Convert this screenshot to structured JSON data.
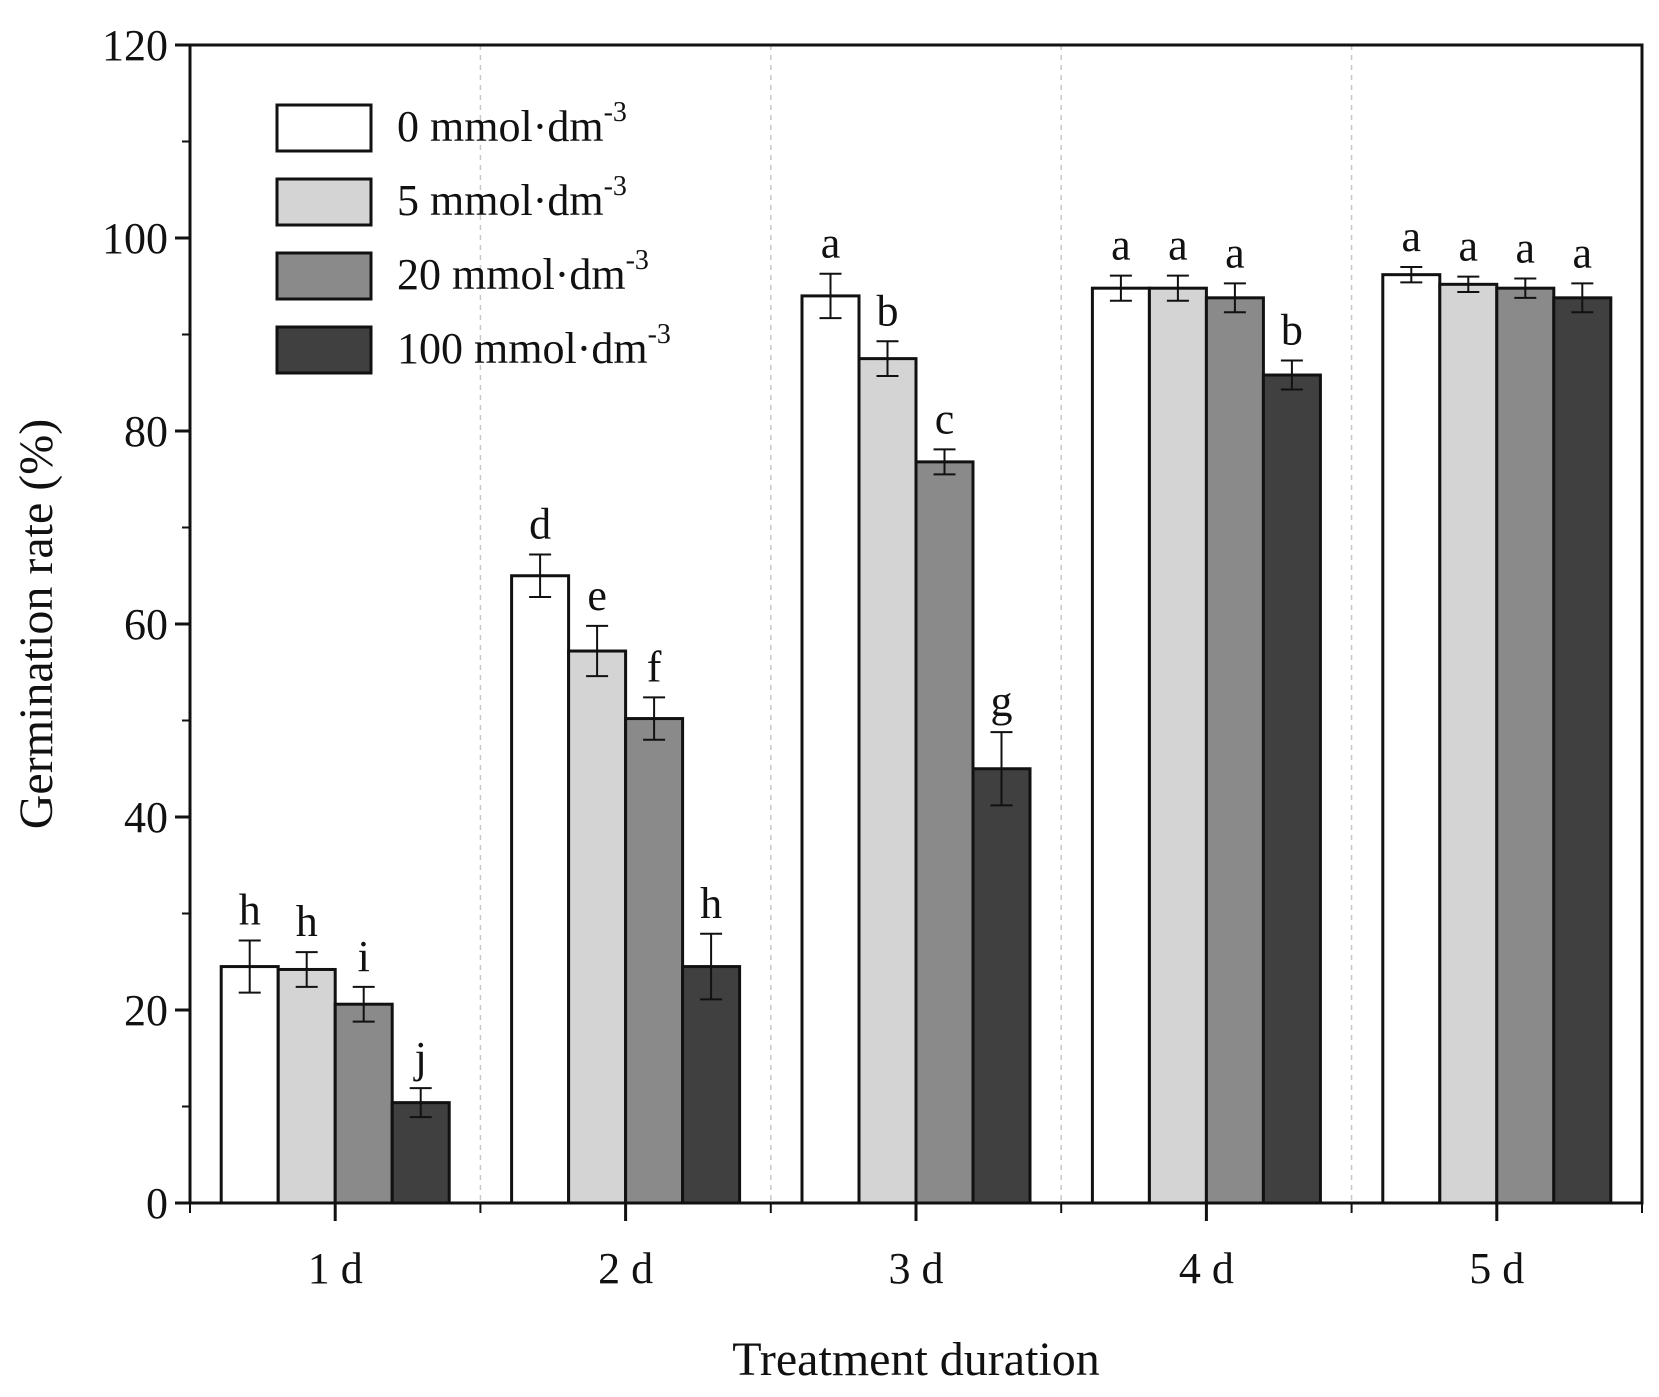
{
  "chart_data": {
    "type": "bar",
    "title": "",
    "xlabel": "Treatment duration",
    "ylabel": "Germination rate (%)",
    "categories": [
      "1 d",
      "2 d",
      "3 d",
      "4 d",
      "5 d"
    ],
    "ylim": [
      0,
      120
    ],
    "yticks": [
      0,
      20,
      40,
      60,
      80,
      100,
      120
    ],
    "grid": "vertical dashed separators between groups",
    "legend_position": "top-left",
    "series": [
      {
        "name": "0 mmol·dm",
        "name_sup": "-3",
        "color": "#ffffff",
        "values": [
          24.5,
          65.0,
          94.0,
          94.8,
          96.2
        ],
        "errors": [
          2.7,
          2.2,
          2.3,
          1.3,
          0.8
        ],
        "letters": [
          "h",
          "d",
          "a",
          "a",
          "a"
        ]
      },
      {
        "name": "5 mmol·dm",
        "name_sup": "-3",
        "color": "#d4d4d4",
        "values": [
          24.2,
          57.2,
          87.5,
          94.8,
          95.2
        ],
        "errors": [
          1.8,
          2.6,
          1.8,
          1.3,
          0.8
        ],
        "letters": [
          "h",
          "e",
          "b",
          "a",
          "a"
        ]
      },
      {
        "name": "20 mmol·dm",
        "name_sup": "-3",
        "color": "#8a8a8a",
        "values": [
          20.6,
          50.2,
          76.8,
          93.8,
          94.8
        ],
        "errors": [
          1.8,
          2.2,
          1.3,
          1.5,
          1.0
        ],
        "letters": [
          "i",
          "f",
          "c",
          "a",
          "a"
        ]
      },
      {
        "name": "100 mmol·dm",
        "name_sup": "-3",
        "color": "#404040",
        "values": [
          10.4,
          24.5,
          45.0,
          85.8,
          93.8
        ],
        "errors": [
          1.5,
          3.4,
          3.8,
          1.5,
          1.5
        ],
        "letters": [
          "j",
          "h",
          "g",
          "b",
          "a"
        ]
      }
    ]
  }
}
